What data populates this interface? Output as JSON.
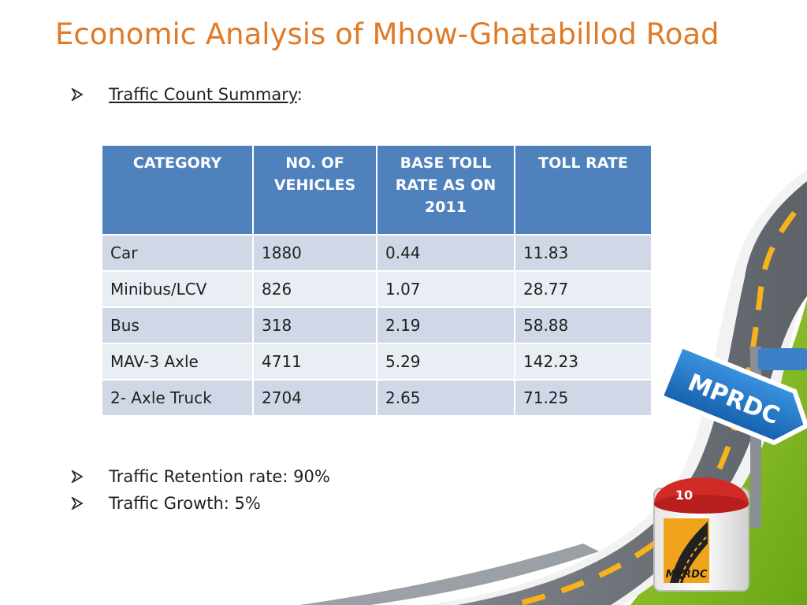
{
  "title": "Economic Analysis of Mhow-Ghatabillod Road",
  "summary": {
    "label": "Traffic Count Summary",
    "suffix": ":"
  },
  "table": {
    "headers": [
      "CATEGORY",
      "NO. OF VEHICLES",
      "BASE TOLL RATE AS ON 2011",
      "TOLL RATE"
    ],
    "rows": [
      [
        "Car",
        "1880",
        "0.44",
        "11.83"
      ],
      [
        "Minibus/LCV",
        "826",
        "1.07",
        "28.77"
      ],
      [
        "Bus",
        "318",
        "2.19",
        "58.88"
      ],
      [
        "MAV-3 Axle",
        "4711",
        "5.29",
        "142.23"
      ],
      [
        "2- Axle Truck",
        "2704",
        "2.65",
        "71.25"
      ]
    ]
  },
  "notes": {
    "retention": "Traffic Retention rate: 90%",
    "growth": "Traffic Growth: 5%"
  },
  "sign": {
    "text": "MPRDC"
  },
  "milestone": {
    "number": "10",
    "logo_text": "MPRDC"
  },
  "colors": {
    "title": "#e07a26",
    "header_bg": "#4f81bd",
    "row_odd": "#d0d8e8",
    "row_even": "#e9edf4",
    "road": "#6a6f76",
    "grass": "#7cb518",
    "sign_blue": "#2176c7",
    "milestone_red": "#d22a27"
  }
}
